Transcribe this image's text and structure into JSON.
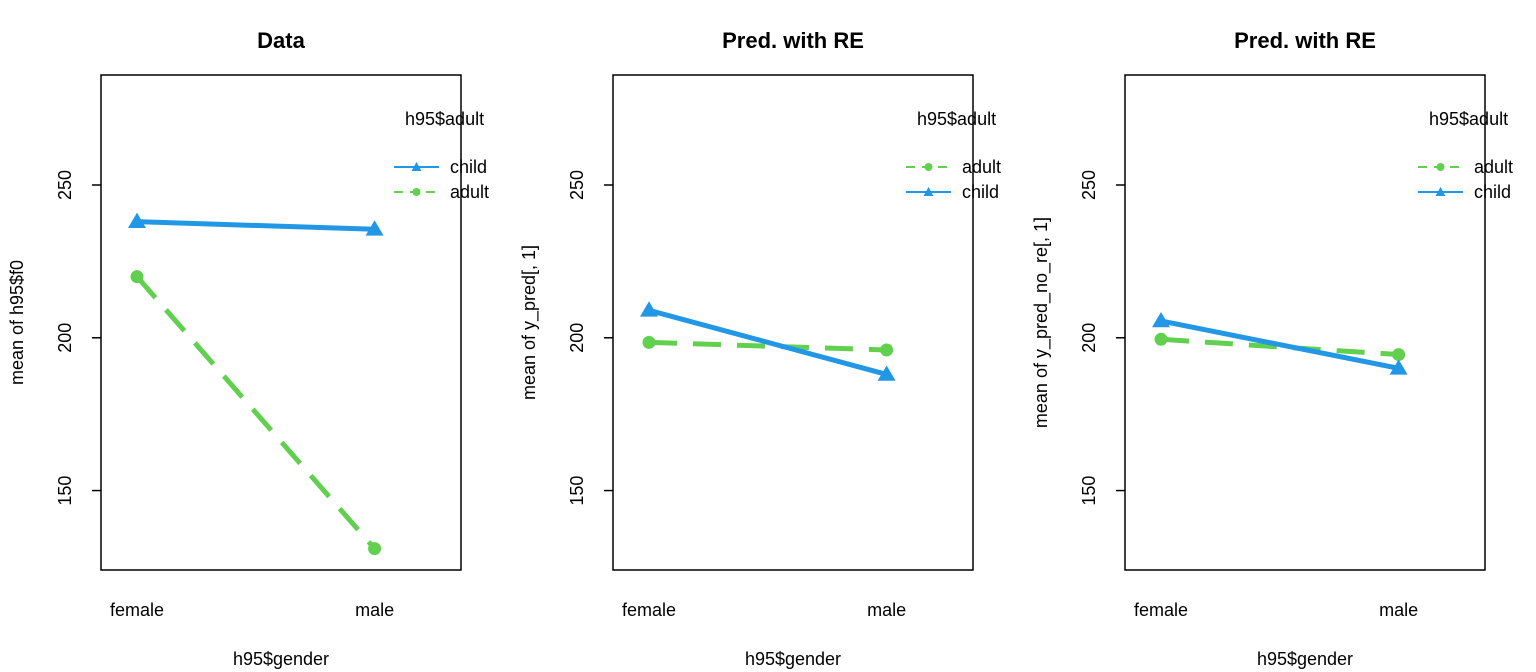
{
  "colors": {
    "adult": "#61D04F",
    "child": "#2297E6"
  },
  "chart_data": [
    {
      "type": "line",
      "title": "Data",
      "xlabel": "h95$gender",
      "ylabel": "mean of  h95$f0",
      "categories": [
        "female",
        "male"
      ],
      "ylim": [
        124,
        286
      ],
      "yticks": [
        150,
        200,
        250
      ],
      "legend_title": "h95$adult",
      "legend_position": "top-right",
      "legend_order": [
        "child",
        "adult"
      ],
      "series": [
        {
          "name": "child",
          "key": "child",
          "values": [
            238,
            235.5
          ]
        },
        {
          "name": "adult",
          "key": "adult",
          "values": [
            220,
            131
          ]
        }
      ]
    },
    {
      "type": "line",
      "title": "Pred. with RE",
      "xlabel": "h95$gender",
      "ylabel": "mean of  y_pred[, 1]",
      "categories": [
        "female",
        "male"
      ],
      "ylim": [
        124,
        286
      ],
      "yticks": [
        150,
        200,
        250
      ],
      "legend_title": "h95$adult",
      "legend_position": "top-right",
      "legend_order": [
        "adult",
        "child"
      ],
      "series": [
        {
          "name": "adult",
          "key": "adult",
          "values": [
            198.5,
            196
          ]
        },
        {
          "name": "child",
          "key": "child",
          "values": [
            209,
            188
          ]
        }
      ]
    },
    {
      "type": "line",
      "title": "Pred. with RE",
      "xlabel": "h95$gender",
      "ylabel": "mean of  y_pred_no_re[, 1]",
      "categories": [
        "female",
        "male"
      ],
      "ylim": [
        124,
        286
      ],
      "yticks": [
        150,
        200,
        250
      ],
      "legend_title": "h95$adult",
      "legend_position": "top-right",
      "legend_order": [
        "adult",
        "child"
      ],
      "series": [
        {
          "name": "adult",
          "key": "adult",
          "values": [
            199.5,
            194.5
          ]
        },
        {
          "name": "child",
          "key": "child",
          "values": [
            205.5,
            190
          ]
        }
      ]
    }
  ]
}
